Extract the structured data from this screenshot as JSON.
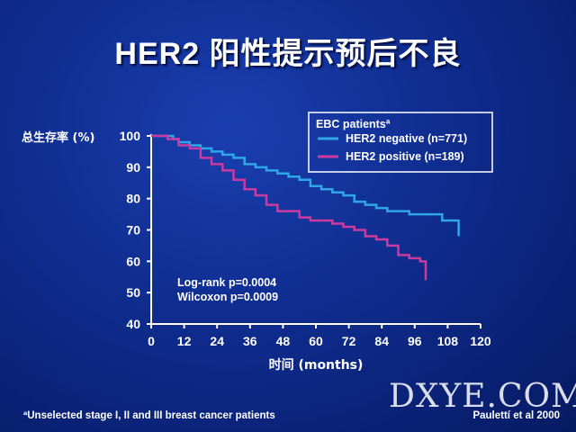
{
  "slide": {
    "title": "HER2 阳性提示预后不良",
    "footnote": "ªUnselected stage I, II and III breast cancer patients",
    "citation": "Paulettí et al 2000",
    "watermark": "DXYE.COM"
  },
  "colors": {
    "her2_negative": "#2fa6e8",
    "her2_positive": "#cc3aa0",
    "axis": "#ffffff",
    "background": "#0f2c8e"
  },
  "chart_data": {
    "type": "line",
    "title": "",
    "xlabel": "时间 (months)",
    "ylabel": "总生存率 (%)",
    "xlim": [
      0,
      120
    ],
    "ylim": [
      40,
      100
    ],
    "xticks": [
      0,
      12,
      24,
      36,
      48,
      60,
      72,
      84,
      96,
      108,
      120
    ],
    "yticks": [
      40,
      50,
      60,
      70,
      80,
      90,
      100
    ],
    "grid": false,
    "legend": {
      "title": "EBC patientsª",
      "placement": "top-right"
    },
    "annotations": [
      "Log-rank p=0.0004",
      "Wilcoxon p=0.0009"
    ],
    "series": [
      {
        "name": "HER2 negative (n=771)",
        "color": "#2fa6e8",
        "x": [
          0,
          4,
          8,
          10,
          14,
          18,
          22,
          26,
          30,
          34,
          38,
          42,
          46,
          50,
          54,
          58,
          62,
          66,
          70,
          74,
          78,
          82,
          86,
          90,
          94,
          98,
          102,
          106,
          110,
          112,
          112
        ],
        "y": [
          100,
          100,
          99,
          98,
          97,
          96,
          95,
          94,
          93,
          91,
          90,
          89,
          88,
          87,
          86,
          84,
          83,
          82,
          81,
          79,
          78,
          77,
          76,
          76,
          75,
          75,
          75,
          73,
          73,
          72,
          68
        ]
      },
      {
        "name": "HER2 positive (n=189)",
        "color": "#cc3aa0",
        "x": [
          0,
          6,
          10,
          14,
          18,
          22,
          26,
          30,
          34,
          38,
          42,
          46,
          50,
          54,
          58,
          62,
          66,
          70,
          74,
          78,
          82,
          86,
          90,
          94,
          96,
          98,
          100,
          100
        ],
        "y": [
          100,
          99,
          97,
          96,
          93,
          91,
          89,
          86,
          83,
          81,
          78,
          76,
          76,
          74,
          73,
          73,
          72,
          71,
          70,
          68,
          67,
          65,
          62,
          61,
          61,
          60,
          58,
          54
        ]
      }
    ]
  }
}
